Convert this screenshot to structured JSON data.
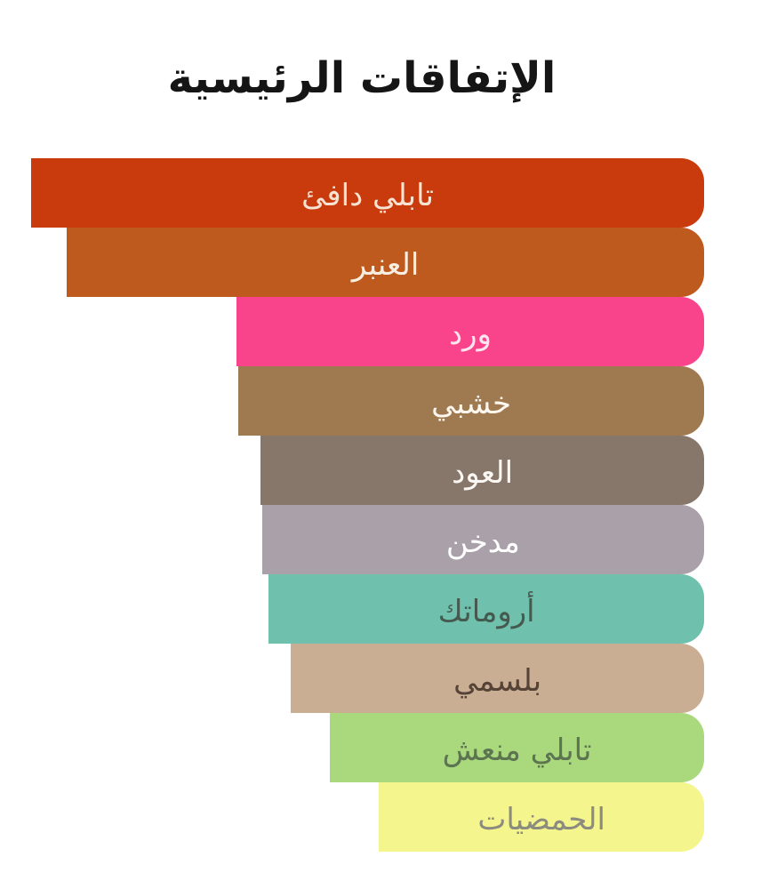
{
  "title": "الإتفاقات الرئيسية",
  "chart_data": {
    "type": "bar",
    "orientation": "horizontal_rtl",
    "title": "الإتفاقات الرئيسية",
    "categories": [
      "تابلي دافئ",
      "العنبر",
      "ورد",
      "خشبي",
      "العود",
      "مدخن",
      "أروماتك",
      "بلسمي",
      "تابلي منعش",
      "الحمضيات"
    ],
    "values": [
      100,
      94.7,
      69.5,
      69.2,
      65.9,
      65.7,
      64.7,
      61.4,
      55.6,
      48.3
    ],
    "value_unit": "percent_of_max_bar_width",
    "bar_alignment": "right",
    "axis": "none",
    "gridlines": false,
    "legend": "none",
    "colors": [
      "#c93a0c",
      "#bf5a1e",
      "#f9448c",
      "#9f7950",
      "#87766a",
      "#a9a0aa",
      "#6fc0ad",
      "#c9ae93",
      "#aad87d",
      "#f5f58d"
    ],
    "text_colors": [
      "#f6e3d2",
      "#f8efe2",
      "#fce6ee",
      "#fdf7ef",
      "#fbf7f3",
      "#ffffff",
      "#46594f",
      "#564338",
      "#5c7450",
      "#8b8b7f"
    ],
    "title_color": "#151515",
    "background_color": "#ffffff"
  }
}
